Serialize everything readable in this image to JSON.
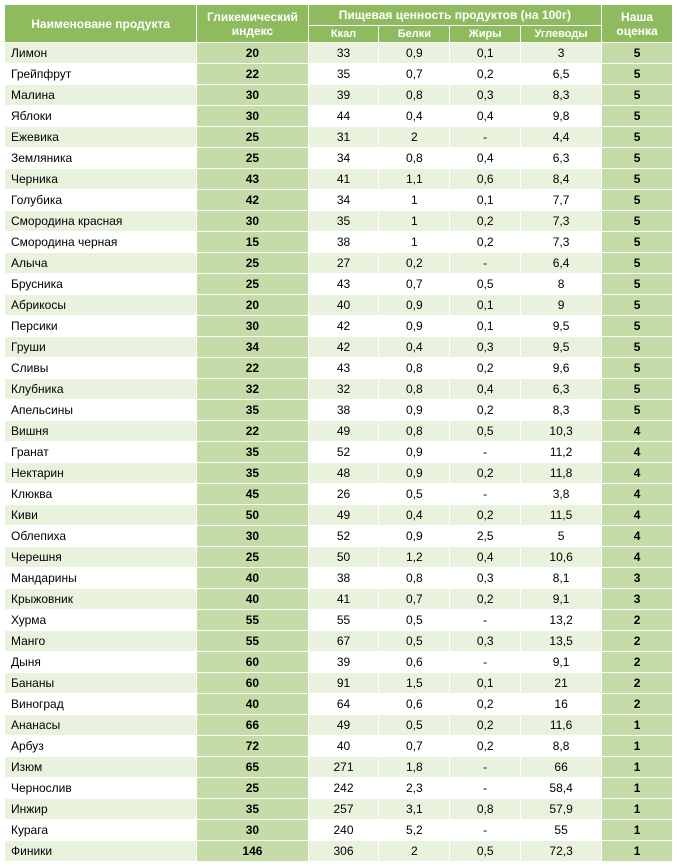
{
  "header": {
    "name": "Наименоване продукта",
    "gi": "Гликемический индекс",
    "nutrition": "Пищевая ценность продуктов (на 100г)",
    "kcal": "Ккал",
    "protein": "Белки",
    "fat": "Жиры",
    "carbs": "Углеводы",
    "rating": "Наша оценка"
  },
  "colors": {
    "header_bg": "#8fbb5f",
    "header_text": "#ffffff",
    "highlight_bg": "#c5dca8",
    "row_even_bg": "#e9f2dc",
    "row_odd_bg": "#ffffff",
    "border": "#ffffff"
  },
  "rows": [
    {
      "name": "Лимон",
      "gi": "20",
      "kcal": "33",
      "prot": "0,9",
      "fat": "0,1",
      "carb": "3",
      "rating": "5"
    },
    {
      "name": "Грейпфрут",
      "gi": "22",
      "kcal": "35",
      "prot": "0,7",
      "fat": "0,2",
      "carb": "6,5",
      "rating": "5"
    },
    {
      "name": "Малина",
      "gi": "30",
      "kcal": "39",
      "prot": "0,8",
      "fat": "0,3",
      "carb": "8,3",
      "rating": "5"
    },
    {
      "name": "Яблоки",
      "gi": "30",
      "kcal": "44",
      "prot": "0,4",
      "fat": "0,4",
      "carb": "9,8",
      "rating": "5"
    },
    {
      "name": "Ежевика",
      "gi": "25",
      "kcal": "31",
      "prot": "2",
      "fat": "-",
      "carb": "4,4",
      "rating": "5"
    },
    {
      "name": "Земляника",
      "gi": "25",
      "kcal": "34",
      "prot": "0,8",
      "fat": "0,4",
      "carb": "6,3",
      "rating": "5"
    },
    {
      "name": "Черника",
      "gi": "43",
      "kcal": "41",
      "prot": "1,1",
      "fat": "0,6",
      "carb": "8,4",
      "rating": "5"
    },
    {
      "name": "Голубика",
      "gi": "42",
      "kcal": "34",
      "prot": "1",
      "fat": "0,1",
      "carb": "7,7",
      "rating": "5"
    },
    {
      "name": "Смородина красная",
      "gi": "30",
      "kcal": "35",
      "prot": "1",
      "fat": "0,2",
      "carb": "7,3",
      "rating": "5"
    },
    {
      "name": "Смородина черная",
      "gi": "15",
      "kcal": "38",
      "prot": "1",
      "fat": "0,2",
      "carb": "7,3",
      "rating": "5"
    },
    {
      "name": "Алыча",
      "gi": "25",
      "kcal": "27",
      "prot": "0,2",
      "fat": "-",
      "carb": "6,4",
      "rating": "5"
    },
    {
      "name": "Брусника",
      "gi": "25",
      "kcal": "43",
      "prot": "0,7",
      "fat": "0,5",
      "carb": "8",
      "rating": "5"
    },
    {
      "name": "Абрикосы",
      "gi": "20",
      "kcal": "40",
      "prot": "0,9",
      "fat": "0,1",
      "carb": "9",
      "rating": "5"
    },
    {
      "name": "Персики",
      "gi": "30",
      "kcal": "42",
      "prot": "0,9",
      "fat": "0,1",
      "carb": "9,5",
      "rating": "5"
    },
    {
      "name": "Груши",
      "gi": "34",
      "kcal": "42",
      "prot": "0,4",
      "fat": "0,3",
      "carb": "9,5",
      "rating": "5"
    },
    {
      "name": "Сливы",
      "gi": "22",
      "kcal": "43",
      "prot": "0,8",
      "fat": "0,2",
      "carb": "9,6",
      "rating": "5"
    },
    {
      "name": "Клубника",
      "gi": "32",
      "kcal": "32",
      "prot": "0,8",
      "fat": "0,4",
      "carb": "6,3",
      "rating": "5"
    },
    {
      "name": "Апельсины",
      "gi": "35",
      "kcal": "38",
      "prot": "0,9",
      "fat": "0,2",
      "carb": "8,3",
      "rating": "5"
    },
    {
      "name": "Вишня",
      "gi": "22",
      "kcal": "49",
      "prot": "0,8",
      "fat": "0,5",
      "carb": "10,3",
      "rating": "4"
    },
    {
      "name": "Гранат",
      "gi": "35",
      "kcal": "52",
      "prot": "0,9",
      "fat": "-",
      "carb": "11,2",
      "rating": "4"
    },
    {
      "name": "Нектарин",
      "gi": "35",
      "kcal": "48",
      "prot": "0,9",
      "fat": "0,2",
      "carb": "11,8",
      "rating": "4"
    },
    {
      "name": "Клюква",
      "gi": "45",
      "kcal": "26",
      "prot": "0,5",
      "fat": "-",
      "carb": "3,8",
      "rating": "4"
    },
    {
      "name": "Киви",
      "gi": "50",
      "kcal": "49",
      "prot": "0,4",
      "fat": "0,2",
      "carb": "11,5",
      "rating": "4"
    },
    {
      "name": "Облепиха",
      "gi": "30",
      "kcal": "52",
      "prot": "0,9",
      "fat": "2,5",
      "carb": "5",
      "rating": "4"
    },
    {
      "name": "Черешня",
      "gi": "25",
      "kcal": "50",
      "prot": "1,2",
      "fat": "0,4",
      "carb": "10,6",
      "rating": "4"
    },
    {
      "name": "Мандарины",
      "gi": "40",
      "kcal": "38",
      "prot": "0,8",
      "fat": "0,3",
      "carb": "8,1",
      "rating": "3"
    },
    {
      "name": "Крыжовник",
      "gi": "40",
      "kcal": "41",
      "prot": "0,7",
      "fat": "0,2",
      "carb": "9,1",
      "rating": "3"
    },
    {
      "name": "Хурма",
      "gi": "55",
      "kcal": "55",
      "prot": "0,5",
      "fat": "-",
      "carb": "13,2",
      "rating": "2"
    },
    {
      "name": "Манго",
      "gi": "55",
      "kcal": "67",
      "prot": "0,5",
      "fat": "0,3",
      "carb": "13,5",
      "rating": "2"
    },
    {
      "name": "Дыня",
      "gi": "60",
      "kcal": "39",
      "prot": "0,6",
      "fat": "-",
      "carb": "9,1",
      "rating": "2"
    },
    {
      "name": "Бананы",
      "gi": "60",
      "kcal": "91",
      "prot": "1,5",
      "fat": "0,1",
      "carb": "21",
      "rating": "2"
    },
    {
      "name": "Виноград",
      "gi": "40",
      "kcal": "64",
      "prot": "0,6",
      "fat": "0,2",
      "carb": "16",
      "rating": "2"
    },
    {
      "name": "Ананасы",
      "gi": "66",
      "kcal": "49",
      "prot": "0,5",
      "fat": "0,2",
      "carb": "11,6",
      "rating": "1"
    },
    {
      "name": "Арбуз",
      "gi": "72",
      "kcal": "40",
      "prot": "0,7",
      "fat": "0,2",
      "carb": "8,8",
      "rating": "1"
    },
    {
      "name": "Изюм",
      "gi": "65",
      "kcal": "271",
      "prot": "1,8",
      "fat": "-",
      "carb": "66",
      "rating": "1"
    },
    {
      "name": "Чернослив",
      "gi": "25",
      "kcal": "242",
      "prot": "2,3",
      "fat": "-",
      "carb": "58,4",
      "rating": "1"
    },
    {
      "name": "Инжир",
      "gi": "35",
      "kcal": "257",
      "prot": "3,1",
      "fat": "0,8",
      "carb": "57,9",
      "rating": "1"
    },
    {
      "name": "Курага",
      "gi": "30",
      "kcal": "240",
      "prot": "5,2",
      "fat": "-",
      "carb": "55",
      "rating": "1"
    },
    {
      "name": "Финики",
      "gi": "146",
      "kcal": "306",
      "prot": "2",
      "fat": "0,5",
      "carb": "72,3",
      "rating": "1"
    }
  ]
}
